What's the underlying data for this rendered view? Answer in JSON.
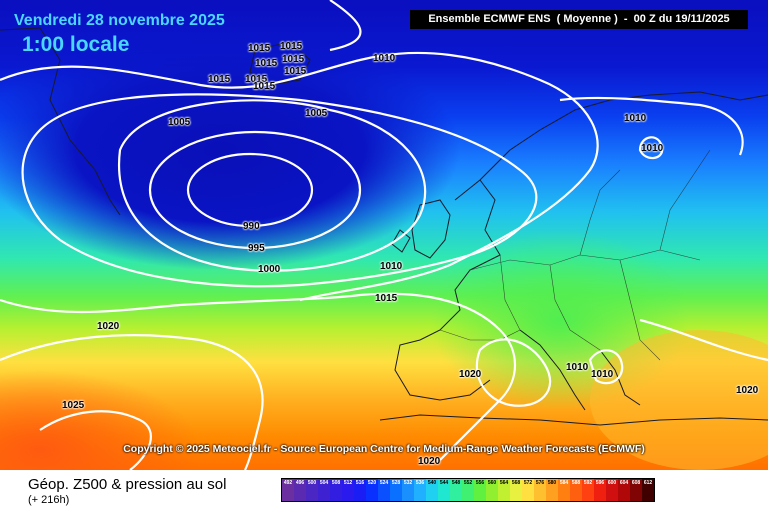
{
  "header": {
    "date": "Vendredi 28 novembre 2025",
    "time": "1:00 locale",
    "model": "Ensemble ECMWF ENS  ( Moyenne )  -  00 Z du 19/11/2025"
  },
  "copyright": "Copyright © 2025 Meteociel.fr - Source European Centre for Medium-Range Weather Forecasts (ECMWF)",
  "footer": {
    "parameter": "Géop. Z500 & pression au sol",
    "range": "(+ 216h)"
  },
  "colors": {
    "low_pressure": "#0a0fbf",
    "high_pressure": "#ff8a00",
    "isobar": "#ffffff"
  },
  "isobar_labels": [
    "1015",
    "1015",
    "1015",
    "1015",
    "1015",
    "1015",
    "1015",
    "1015",
    "1010",
    "1005",
    "1005",
    "990",
    "995",
    "1000",
    "1010",
    "1015",
    "1020",
    "1025",
    "1020",
    "1010",
    "1010",
    "1010",
    "1010",
    "1020",
    "1020"
  ],
  "scale_labels": [
    "492",
    "496",
    "500",
    "504",
    "508",
    "512",
    "516",
    "520",
    "524",
    "528",
    "532",
    "536",
    "540",
    "544",
    "548",
    "552",
    "556",
    "560",
    "564",
    "568",
    "572",
    "576",
    "580",
    "584",
    "588",
    "592",
    "596",
    "600",
    "604",
    "608",
    "612"
  ],
  "scale_colors": [
    "#6b2fa0",
    "#5a2ab0",
    "#4a26c2",
    "#3e22d2",
    "#321ee0",
    "#2a1aee",
    "#1a1ef5",
    "#0a30ff",
    "#0a50ff",
    "#0a70ff",
    "#1a90ff",
    "#20b0ff",
    "#20d0f0",
    "#20e8d0",
    "#30f0a0",
    "#40f070",
    "#60f040",
    "#90f030",
    "#c0f030",
    "#e8f040",
    "#ffe040",
    "#ffc030",
    "#ffa020",
    "#ff8010",
    "#ff6010",
    "#ff4010",
    "#f02010",
    "#d01010",
    "#b00808",
    "#800404",
    "#400000"
  ]
}
